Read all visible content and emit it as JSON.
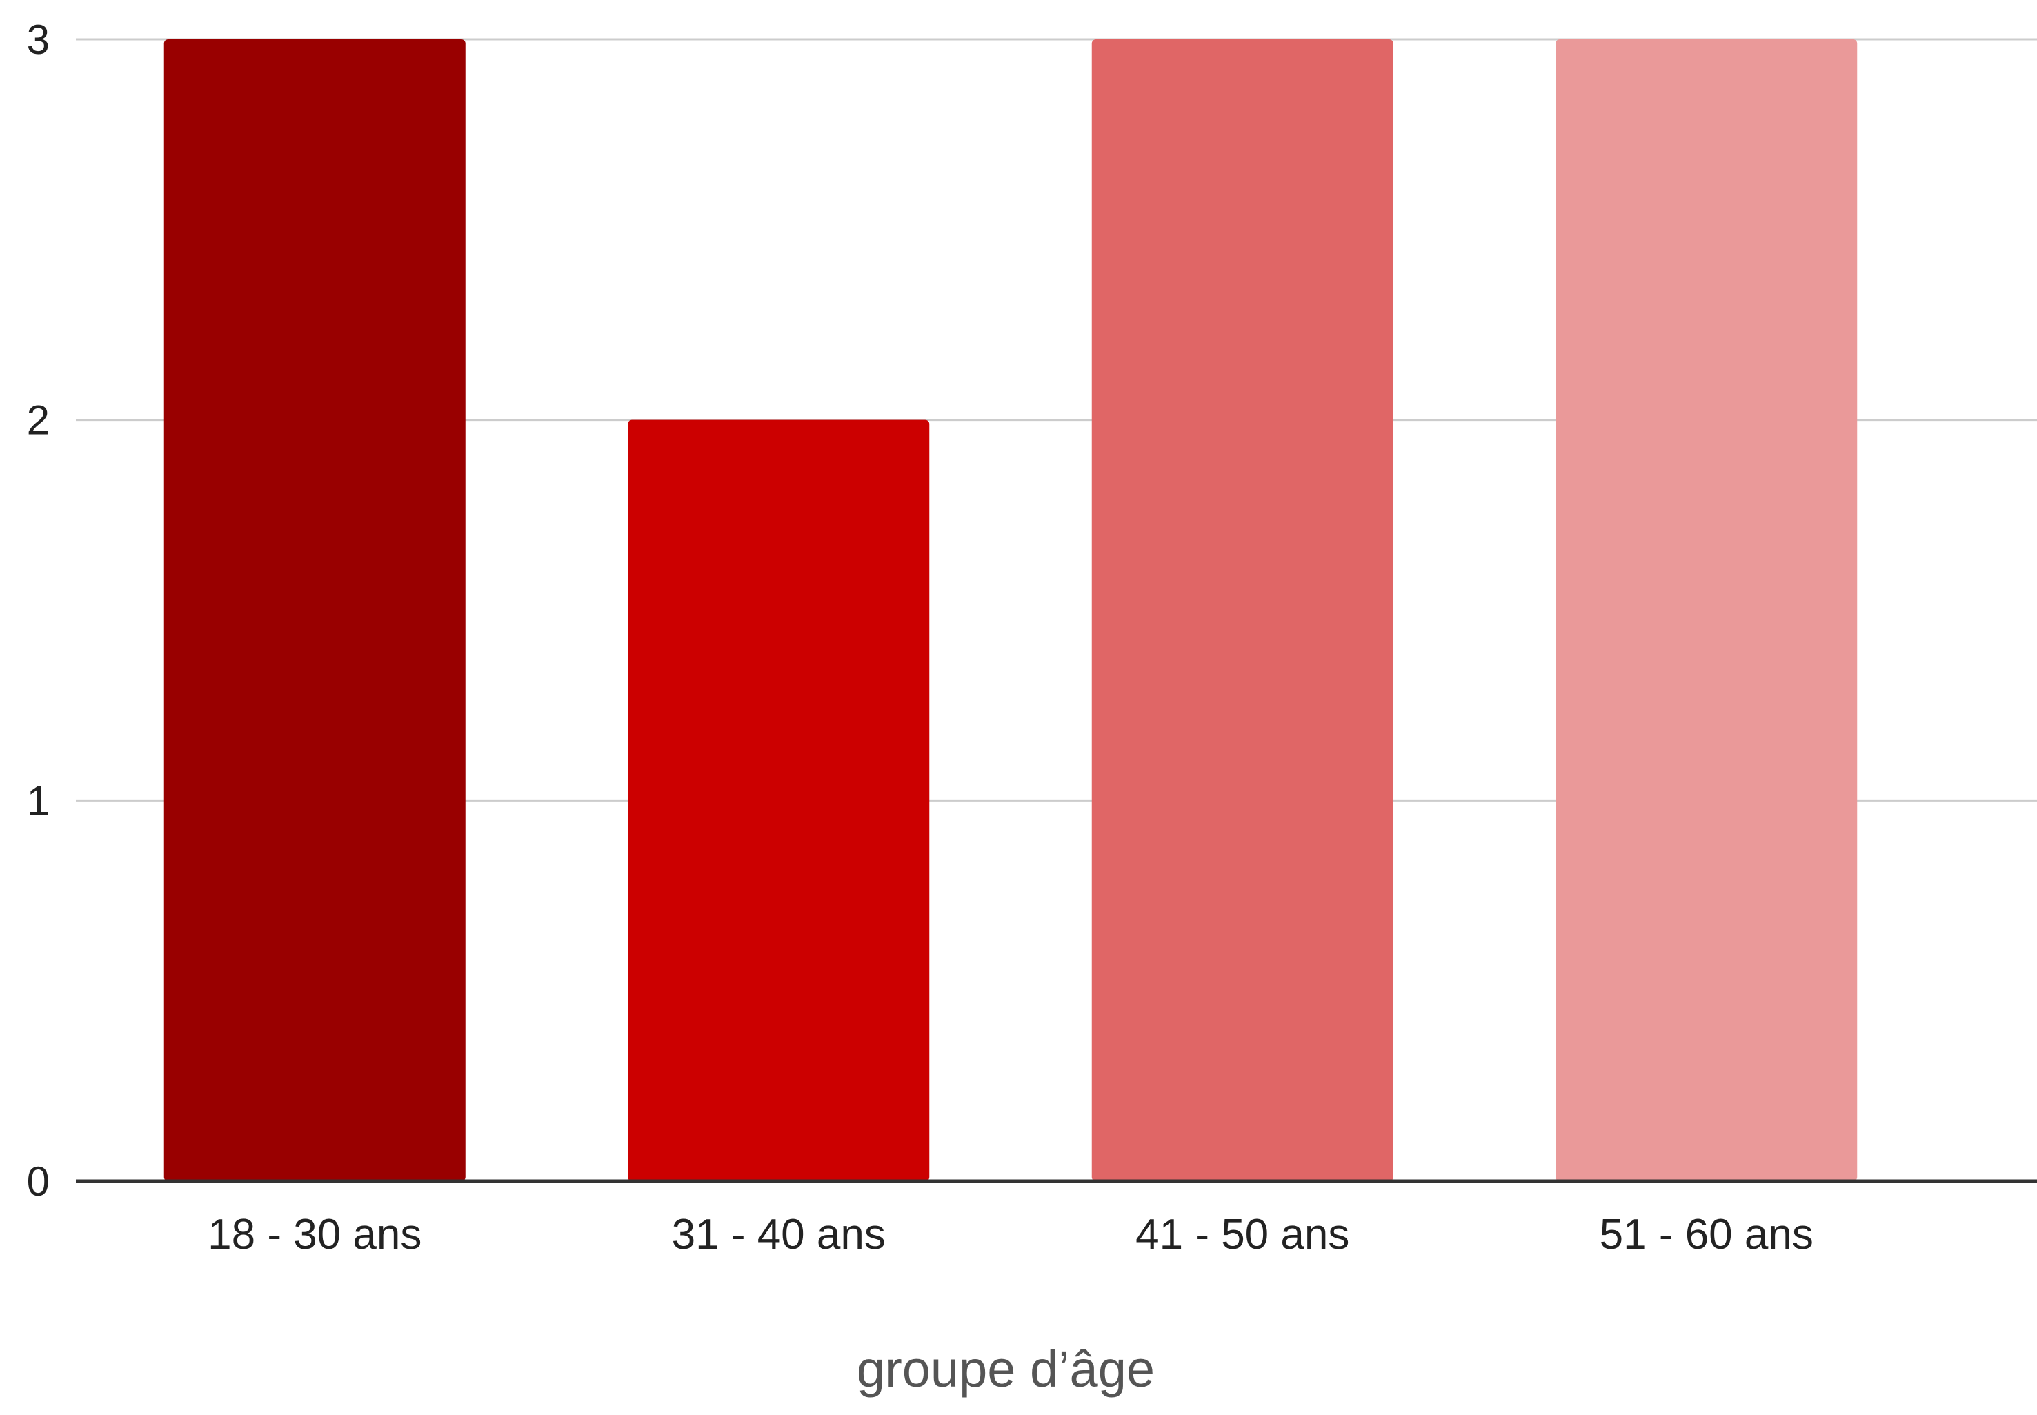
{
  "chart_data": {
    "type": "bar",
    "title": "",
    "xlabel": "groupe d’âge",
    "ylabel": "",
    "categories": [
      "18 - 30 ans",
      "31 - 40 ans",
      "41 - 50 ans",
      "51 - 60 ans"
    ],
    "values": [
      3,
      2,
      3,
      3
    ],
    "ylim": [
      0,
      3
    ],
    "yticks": [
      "0",
      "1",
      "2",
      "3"
    ],
    "grid": true,
    "legend": "none",
    "colors": [
      "#990000",
      "#cc0000",
      "#e06666",
      "#ea9999"
    ],
    "gridline_color": "#cccccc",
    "baseline_color": "#333333"
  }
}
